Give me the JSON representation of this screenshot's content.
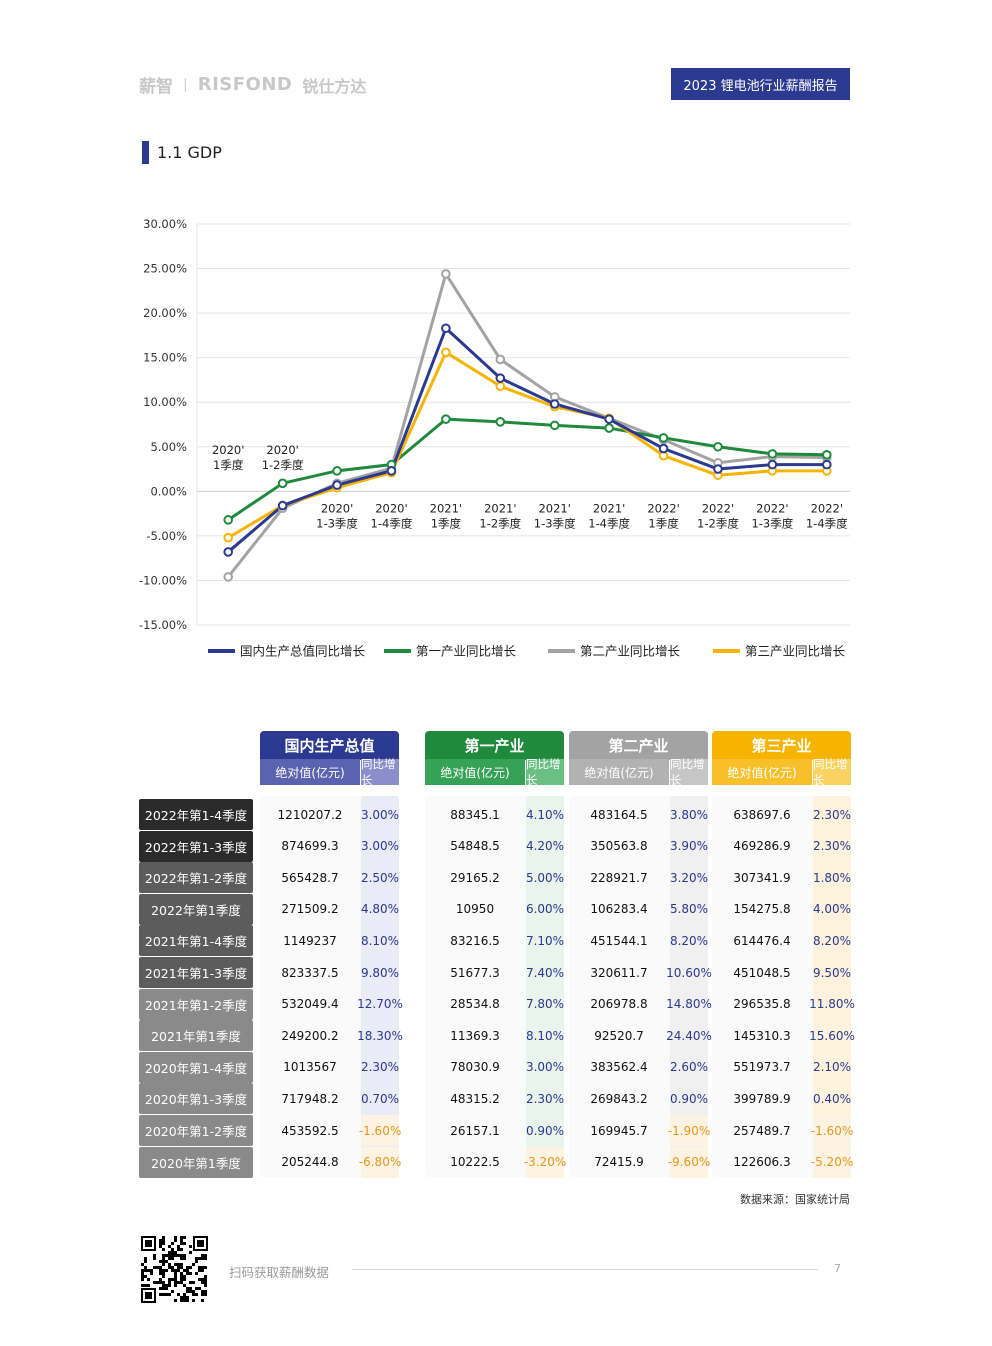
{
  "header": {
    "brand_xinzhi": "薪智",
    "brand_separator": "|",
    "brand_risfond": "RISFOND",
    "brand_risfond_cn": "锐仕方达",
    "report_title": "2023 锂电池行业薪酬报告"
  },
  "section": {
    "title": "1.1 GDP"
  },
  "colors": {
    "gdp": "#2b3990",
    "primary": "#1f8a3c",
    "secondary": "#a3a3a3",
    "tertiary": "#f6b400",
    "row_dark": "#2b2b2b",
    "row_mid": "#5c5c5c",
    "row_light": "#8a8a8a",
    "negative_text": "#e9961f",
    "positive_text": "#2b3990"
  },
  "chart_data": {
    "type": "line",
    "categories": [
      [
        "2020'",
        "1季度"
      ],
      [
        "2020'",
        "1-2季度"
      ],
      [
        "2020'",
        "1-3季度"
      ],
      [
        "2020'",
        "1-4季度"
      ],
      [
        "2021'",
        "1季度"
      ],
      [
        "2021'",
        "1-2季度"
      ],
      [
        "2021'",
        "1-3季度"
      ],
      [
        "2021'",
        "1-4季度"
      ],
      [
        "2022'",
        "1季度"
      ],
      [
        "2022'",
        "1-2季度"
      ],
      [
        "2022'",
        "1-3季度"
      ],
      [
        "2022'",
        "1-4季度"
      ]
    ],
    "y_ticks": [
      "30.00%",
      "25.00%",
      "20.00%",
      "15.00%",
      "10.00%",
      "5.00%",
      "0.00%",
      "-5.00%",
      "-10.00%",
      "-15.00%"
    ],
    "ylim": [
      -15,
      30
    ],
    "grid": true,
    "legend_position": "bottom",
    "series": [
      {
        "name": "国内生产总值同比增长",
        "color": "#2b3990",
        "values": [
          -6.8,
          -1.6,
          0.7,
          2.3,
          18.3,
          12.7,
          9.8,
          8.1,
          4.8,
          2.5,
          3.0,
          3.0
        ]
      },
      {
        "name": "第一产业同比增长",
        "color": "#1f8a3c",
        "values": [
          -3.2,
          0.9,
          2.3,
          3.0,
          8.1,
          7.8,
          7.4,
          7.1,
          6.0,
          5.0,
          4.2,
          4.1
        ]
      },
      {
        "name": "第二产业同比增长",
        "color": "#a3a3a3",
        "values": [
          -9.6,
          -1.9,
          0.9,
          2.6,
          24.4,
          14.8,
          10.6,
          8.2,
          5.8,
          3.2,
          3.9,
          3.8
        ]
      },
      {
        "name": "第三产业同比增长",
        "color": "#f6b400",
        "values": [
          -5.2,
          -1.6,
          0.4,
          2.1,
          15.6,
          11.8,
          9.5,
          8.2,
          4.0,
          1.8,
          2.3,
          2.3
        ]
      }
    ]
  },
  "table": {
    "categories": [
      {
        "label": "国内生产总值",
        "abs_label": "绝对值(亿元)",
        "pct_label": "同比增长",
        "color": "#2b3990",
        "sub_abs": "#5a63b0",
        "sub_pct": "#8a8fcb",
        "band": "#e9ebf6"
      },
      {
        "label": "第一产业",
        "abs_label": "绝对值(亿元)",
        "pct_label": "同比增长",
        "color": "#1f8a3c",
        "sub_abs": "#36a255",
        "sub_pct": "#6bbf83",
        "band": "#e8f4ec"
      },
      {
        "label": "第二产业",
        "abs_label": "绝对值(亿元)",
        "pct_label": "同比增长",
        "color": "#a3a3a3",
        "sub_abs": "#b2b2b2",
        "sub_pct": "#c6c6c6",
        "band": "#f0f0f0"
      },
      {
        "label": "第三产业",
        "abs_label": "绝对值(亿元)",
        "pct_label": "同比增长",
        "color": "#f6b400",
        "sub_abs": "#f7c02a",
        "sub_pct": "#f9d261",
        "band": "#fdf3dd"
      }
    ],
    "rows": [
      {
        "label": "2022年第1-4季度",
        "tone": "dark",
        "values": [
          [
            "1210207.2",
            "3.00%"
          ],
          [
            "88345.1",
            "4.10%"
          ],
          [
            "483164.5",
            "3.80%"
          ],
          [
            "638697.6",
            "2.30%"
          ]
        ]
      },
      {
        "label": "2022年第1-3季度",
        "tone": "dark",
        "values": [
          [
            "874699.3",
            "3.00%"
          ],
          [
            "54848.5",
            "4.20%"
          ],
          [
            "350563.8",
            "3.90%"
          ],
          [
            "469286.9",
            "2.30%"
          ]
        ]
      },
      {
        "label": "2022年第1-2季度",
        "tone": "mid",
        "values": [
          [
            "565428.7",
            "2.50%"
          ],
          [
            "29165.2",
            "5.00%"
          ],
          [
            "228921.7",
            "3.20%"
          ],
          [
            "307341.9",
            "1.80%"
          ]
        ]
      },
      {
        "label": "2022年第1季度",
        "tone": "mid",
        "values": [
          [
            "271509.2",
            "4.80%"
          ],
          [
            "10950",
            "6.00%"
          ],
          [
            "106283.4",
            "5.80%"
          ],
          [
            "154275.8",
            "4.00%"
          ]
        ]
      },
      {
        "label": "2021年第1-4季度",
        "tone": "mid",
        "values": [
          [
            "1149237",
            "8.10%"
          ],
          [
            "83216.5",
            "7.10%"
          ],
          [
            "451544.1",
            "8.20%"
          ],
          [
            "614476.4",
            "8.20%"
          ]
        ]
      },
      {
        "label": "2021年第1-3季度",
        "tone": "mid",
        "values": [
          [
            "823337.5",
            "9.80%"
          ],
          [
            "51677.3",
            "7.40%"
          ],
          [
            "320611.7",
            "10.60%"
          ],
          [
            "451048.5",
            "9.50%"
          ]
        ]
      },
      {
        "label": "2021年第1-2季度",
        "tone": "light",
        "values": [
          [
            "532049.4",
            "12.70%"
          ],
          [
            "28534.8",
            "7.80%"
          ],
          [
            "206978.8",
            "14.80%"
          ],
          [
            "296535.8",
            "11.80%"
          ]
        ]
      },
      {
        "label": "2021年第1季度",
        "tone": "light",
        "values": [
          [
            "249200.2",
            "18.30%"
          ],
          [
            "11369.3",
            "8.10%"
          ],
          [
            "92520.7",
            "24.40%"
          ],
          [
            "145310.3",
            "15.60%"
          ]
        ]
      },
      {
        "label": "2020年第1-4季度",
        "tone": "light",
        "values": [
          [
            "1013567",
            "2.30%"
          ],
          [
            "78030.9",
            "3.00%"
          ],
          [
            "383562.4",
            "2.60%"
          ],
          [
            "551973.7",
            "2.10%"
          ]
        ]
      },
      {
        "label": "2020年第1-3季度",
        "tone": "light",
        "values": [
          [
            "717948.2",
            "0.70%"
          ],
          [
            "48315.2",
            "2.30%"
          ],
          [
            "269843.2",
            "0.90%"
          ],
          [
            "399789.9",
            "0.40%"
          ]
        ]
      },
      {
        "label": "2020年第1-2季度",
        "tone": "light",
        "values": [
          [
            "453592.5",
            "-1.60%"
          ],
          [
            "26157.1",
            "0.90%"
          ],
          [
            "169945.7",
            "-1.90%"
          ],
          [
            "257489.7",
            "-1.60%"
          ]
        ]
      },
      {
        "label": "2020年第1季度",
        "tone": "light",
        "values": [
          [
            "205244.8",
            "-6.80%"
          ],
          [
            "10222.5",
            "-3.20%"
          ],
          [
            "72415.9",
            "-9.60%"
          ],
          [
            "122606.3",
            "-5.20%"
          ]
        ]
      }
    ]
  },
  "source_note": "数据来源：国家统计局",
  "footer": {
    "scan_text": "扫码获取薪酬数据",
    "page_number": "7",
    "qr_icon": "qr-code-icon"
  }
}
